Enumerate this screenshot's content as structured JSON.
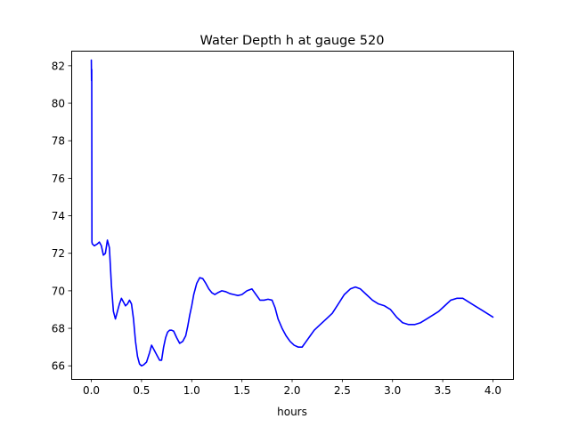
{
  "chart_data": {
    "type": "line",
    "title": "Water Depth h at gauge 520",
    "xlabel": "hours",
    "ylabel": "",
    "xlim": [
      -0.2,
      4.2
    ],
    "ylim": [
      65.3,
      82.8
    ],
    "xticks": [
      0.0,
      0.5,
      1.0,
      1.5,
      2.0,
      2.5,
      3.0,
      3.5,
      4.0
    ],
    "xtick_labels": [
      "0.0",
      "0.5",
      "1.0",
      "1.5",
      "2.0",
      "2.5",
      "3.0",
      "3.5",
      "4.0"
    ],
    "yticks": [
      66,
      68,
      70,
      72,
      74,
      76,
      78,
      80,
      82
    ],
    "ytick_labels": [
      "66",
      "68",
      "70",
      "72",
      "74",
      "76",
      "78",
      "80",
      "82"
    ],
    "grid": false,
    "legend": "none",
    "series": [
      {
        "color": "#0000ff",
        "x": [
          0.0,
          0.002,
          0.004,
          0.006,
          0.01,
          0.03,
          0.06,
          0.08,
          0.1,
          0.12,
          0.14,
          0.16,
          0.18,
          0.2,
          0.22,
          0.24,
          0.26,
          0.28,
          0.3,
          0.32,
          0.34,
          0.36,
          0.38,
          0.4,
          0.42,
          0.44,
          0.46,
          0.48,
          0.5,
          0.52,
          0.55,
          0.58,
          0.6,
          0.62,
          0.64,
          0.66,
          0.68,
          0.7,
          0.72,
          0.74,
          0.76,
          0.78,
          0.8,
          0.82,
          0.85,
          0.88,
          0.91,
          0.94,
          0.96,
          0.98,
          1.0,
          1.02,
          1.05,
          1.08,
          1.11,
          1.14,
          1.17,
          1.2,
          1.23,
          1.26,
          1.3,
          1.34,
          1.38,
          1.42,
          1.46,
          1.5,
          1.55,
          1.6,
          1.64,
          1.68,
          1.72,
          1.76,
          1.8,
          1.83,
          1.86,
          1.9,
          1.94,
          1.98,
          2.02,
          2.06,
          2.1,
          2.14,
          2.18,
          2.22,
          2.28,
          2.34,
          2.4,
          2.46,
          2.52,
          2.58,
          2.63,
          2.68,
          2.74,
          2.8,
          2.86,
          2.92,
          2.98,
          3.04,
          3.1,
          3.16,
          3.22,
          3.28,
          3.34,
          3.4,
          3.46,
          3.52,
          3.58,
          3.64,
          3.7,
          3.76,
          3.82,
          3.88,
          3.94,
          4.0
        ],
        "y": [
          82.3,
          81.2,
          81.8,
          72.6,
          72.5,
          72.4,
          72.5,
          72.6,
          72.4,
          71.9,
          72.0,
          72.7,
          72.3,
          70.3,
          68.9,
          68.5,
          68.9,
          69.3,
          69.6,
          69.4,
          69.2,
          69.3,
          69.5,
          69.3,
          68.5,
          67.3,
          66.5,
          66.1,
          66.0,
          66.05,
          66.2,
          66.7,
          67.1,
          66.9,
          66.7,
          66.5,
          66.3,
          66.3,
          67.0,
          67.5,
          67.8,
          67.9,
          67.9,
          67.85,
          67.5,
          67.2,
          67.3,
          67.6,
          68.1,
          68.7,
          69.2,
          69.8,
          70.4,
          70.7,
          70.65,
          70.4,
          70.1,
          69.9,
          69.8,
          69.9,
          70.0,
          69.95,
          69.85,
          69.8,
          69.75,
          69.8,
          70.0,
          70.1,
          69.8,
          69.5,
          69.5,
          69.55,
          69.5,
          69.1,
          68.5,
          68.0,
          67.6,
          67.3,
          67.1,
          67.0,
          67.0,
          67.3,
          67.6,
          67.9,
          68.2,
          68.5,
          68.8,
          69.3,
          69.8,
          70.1,
          70.2,
          70.1,
          69.8,
          69.5,
          69.3,
          69.2,
          69.0,
          68.6,
          68.3,
          68.2,
          68.2,
          68.3,
          68.5,
          68.7,
          68.9,
          69.2,
          69.5,
          69.6,
          69.6,
          69.4,
          69.2,
          69.0,
          68.8,
          68.6
        ]
      }
    ]
  }
}
